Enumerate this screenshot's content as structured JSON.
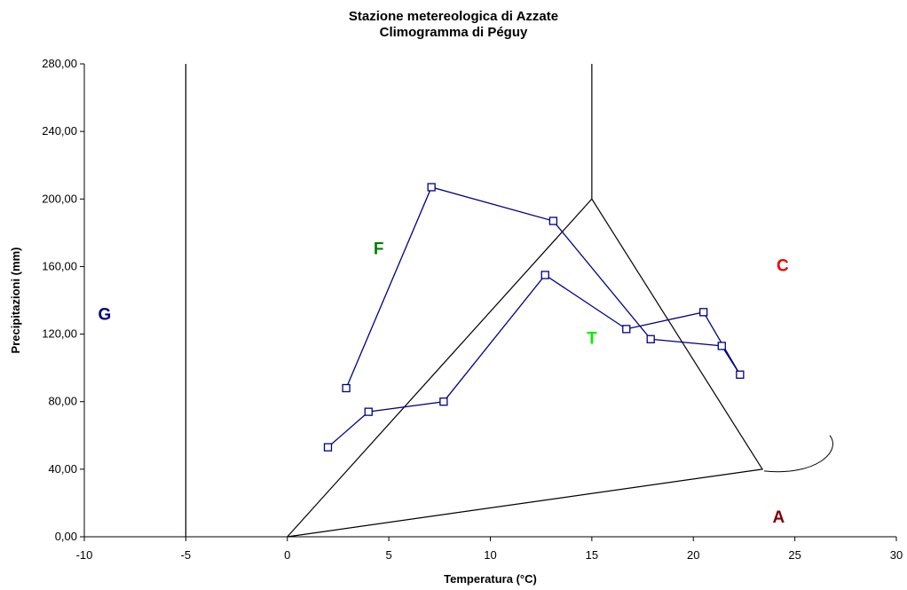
{
  "chart_data": {
    "type": "line",
    "title": "Stazione metereologica di Azzate",
    "subtitle": "Climogramma di Péguy",
    "xlabel": "Temperatura (°C)",
    "ylabel": "Precipitazioni (mm)",
    "xlim": [
      -10,
      30
    ],
    "ylim": [
      0,
      280
    ],
    "x_ticks": [
      "-10",
      "-5",
      "0",
      "5",
      "10",
      "15",
      "20",
      "25",
      "30"
    ],
    "y_ticks": [
      "0,00",
      "40,00",
      "80,00",
      "120,00",
      "160,00",
      "200,00",
      "240,00",
      "280,00"
    ],
    "grid": false,
    "series": [
      {
        "color": "#000080",
        "marker": "square",
        "points": [
          {
            "x": 2.0,
            "y": 53
          },
          {
            "x": 4.0,
            "y": 74
          },
          {
            "x": 7.7,
            "y": 80
          },
          {
            "x": 12.7,
            "y": 155
          },
          {
            "x": 16.7,
            "y": 123
          },
          {
            "x": 20.5,
            "y": 133
          },
          {
            "x": 22.3,
            "y": 96
          },
          {
            "x": 21.4,
            "y": 113
          },
          {
            "x": 17.9,
            "y": 117
          },
          {
            "x": 13.1,
            "y": 187
          },
          {
            "x": 7.1,
            "y": 207
          },
          {
            "x": 2.9,
            "y": 88
          }
        ]
      }
    ],
    "reference_lines": [
      {
        "points": [
          {
            "x": -5,
            "y": 0
          },
          {
            "x": -5,
            "y": 280
          }
        ]
      },
      {
        "points": [
          {
            "x": 15,
            "y": 200
          },
          {
            "x": 15,
            "y": 280
          }
        ]
      },
      {
        "points": [
          {
            "x": 0,
            "y": 0
          },
          {
            "x": 15,
            "y": 200
          },
          {
            "x": 23.4,
            "y": 40
          },
          {
            "x": 0,
            "y": 0
          }
        ]
      }
    ],
    "zones": [
      {
        "label": "G",
        "x": -9,
        "y": 132,
        "color": "#000080"
      },
      {
        "label": "F",
        "x": 4.5,
        "y": 171,
        "color": "#008000"
      },
      {
        "label": "T",
        "x": 15,
        "y": 118,
        "color": "#00ee00"
      },
      {
        "label": "C",
        "x": 24.4,
        "y": 161,
        "color": "#ee0000"
      },
      {
        "label": "A",
        "x": 24.2,
        "y": 12,
        "color": "#800000"
      }
    ]
  }
}
